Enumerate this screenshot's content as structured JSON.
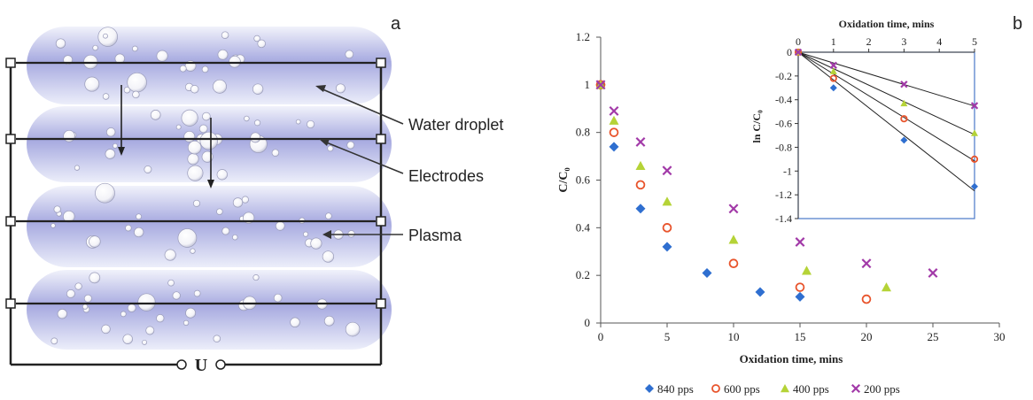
{
  "panel_a": {
    "letter": "a",
    "labels": {
      "water_droplet": "Water droplet",
      "electrodes": "Electrodes",
      "plasma": "Plasma"
    },
    "supply_label": "U",
    "colors": {
      "plasma": "#8c8fd6",
      "plasma_light": "#eef0fb",
      "wire": "#222222"
    }
  },
  "panel_b": {
    "letter": "b",
    "legend": [
      "840 pps",
      "600 pps",
      "400 pps",
      "200 pps"
    ],
    "colors": {
      "840 pps": "#2f6fd0",
      "600 pps": "#e8542c",
      "400 pps": "#b5d337",
      "200 pps": "#a23aa8"
    },
    "markers": {
      "840 pps": "diamond",
      "600 pps": "circle",
      "400 pps": "triangle",
      "200 pps": "x"
    }
  },
  "chart_data": [
    {
      "type": "scatter",
      "title": "",
      "xlabel": "Oxidation time, mins",
      "ylabel": "C/C₀",
      "xlim": [
        0,
        30
      ],
      "ylim": [
        0,
        1.2
      ],
      "xticks": [
        0,
        5,
        10,
        15,
        20,
        25,
        30
      ],
      "yticks": [
        0,
        0.2,
        0.4,
        0.6,
        0.8,
        1,
        1.2
      ],
      "grid": false,
      "legend_position": "bottom",
      "series": [
        {
          "name": "840 pps",
          "x": [
            0,
            1,
            3,
            5,
            8,
            12,
            15
          ],
          "y": [
            1.0,
            0.74,
            0.48,
            0.32,
            0.21,
            0.13,
            0.11
          ]
        },
        {
          "name": "600 pps",
          "x": [
            0,
            1,
            3,
            5,
            10,
            15,
            20
          ],
          "y": [
            1.0,
            0.8,
            0.58,
            0.4,
            0.25,
            0.15,
            0.1
          ]
        },
        {
          "name": "400 pps",
          "x": [
            0,
            1,
            3,
            5,
            10,
            15.5,
            21.5
          ],
          "y": [
            1.0,
            0.85,
            0.66,
            0.51,
            0.35,
            0.22,
            0.15
          ]
        },
        {
          "name": "200 pps",
          "x": [
            0,
            1,
            3,
            5,
            10,
            15,
            20,
            25
          ],
          "y": [
            1.0,
            0.89,
            0.76,
            0.64,
            0.48,
            0.34,
            0.25,
            0.21
          ]
        }
      ]
    },
    {
      "type": "scatter",
      "title": "",
      "xlabel": "Oxidation time, mins",
      "ylabel": "ln C/C₀",
      "xlim": [
        0,
        5
      ],
      "ylim": [
        -1.4,
        0
      ],
      "xticks": [
        0,
        1,
        2,
        3,
        4,
        5
      ],
      "yticks": [
        0,
        -0.2,
        -0.4,
        -0.6,
        -0.8,
        -1,
        -1.2,
        -1.4
      ],
      "grid": false,
      "trendlines": true,
      "series": [
        {
          "name": "840 pps",
          "x": [
            0,
            1,
            3,
            5
          ],
          "y": [
            0,
            -0.3,
            -0.74,
            -1.13
          ]
        },
        {
          "name": "600 pps",
          "x": [
            0,
            1,
            3,
            5
          ],
          "y": [
            0,
            -0.22,
            -0.56,
            -0.9
          ]
        },
        {
          "name": "400 pps",
          "x": [
            0,
            1,
            3,
            5
          ],
          "y": [
            0,
            -0.16,
            -0.43,
            -0.68
          ]
        },
        {
          "name": "200 pps",
          "x": [
            0,
            1,
            3,
            5
          ],
          "y": [
            0,
            -0.11,
            -0.27,
            -0.45
          ]
        }
      ]
    }
  ]
}
